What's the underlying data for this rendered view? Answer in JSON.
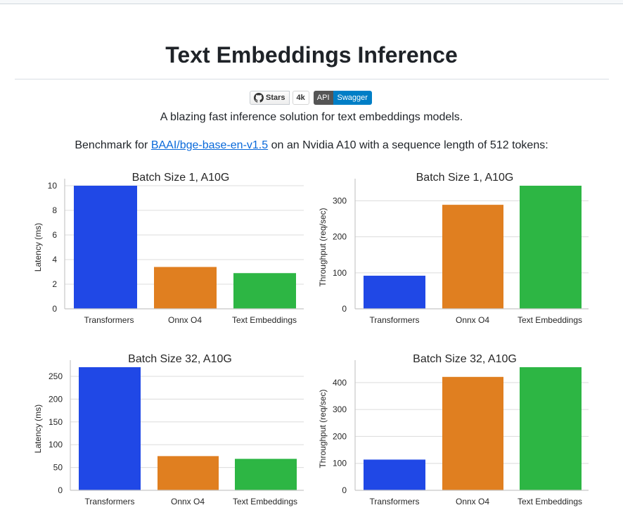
{
  "page": {
    "title": "Text Embeddings Inference",
    "badges": {
      "stars_label": "Stars",
      "stars_count": "4k",
      "api_label": "API",
      "swagger_label": "Swagger"
    },
    "tagline": "A blazing fast inference solution for text embeddings models.",
    "benchmark": {
      "prefix": "Benchmark for ",
      "link_text": "BAAI/bge-base-en-v1.5",
      "suffix": " on an Nvidia A10 with a sequence length of 512 tokens:"
    }
  },
  "colors": {
    "transformers": "#2048e6",
    "onnx": "#e07f20",
    "tei": "#2db644"
  },
  "chart_data": [
    {
      "type": "bar",
      "title": "Batch Size 1, A10G",
      "ylabel": "Latency (ms)",
      "categories": [
        "Transformers",
        "Onnx O4",
        "Text Embeddings"
      ],
      "values": [
        10,
        3.4,
        2.9
      ],
      "ylim": [
        0,
        10
      ],
      "yticks": [
        0,
        2,
        4,
        6,
        8,
        10
      ],
      "grid": true
    },
    {
      "type": "bar",
      "title": "Batch Size 1, A10G",
      "ylabel": "Throughput (req/sec)",
      "categories": [
        "Transformers",
        "Onnx O4",
        "Text Embeddings"
      ],
      "values": [
        92,
        289,
        342
      ],
      "ylim": [
        0,
        342
      ],
      "yticks": [
        0,
        100,
        200,
        300
      ],
      "grid": true
    },
    {
      "type": "bar",
      "title": "Batch Size 32, A10G",
      "ylabel": "Latency (ms)",
      "categories": [
        "Transformers",
        "Onnx O4",
        "Text Embeddings"
      ],
      "values": [
        270,
        75,
        69
      ],
      "ylim": [
        0,
        270
      ],
      "yticks": [
        0,
        50,
        100,
        150,
        200,
        250
      ],
      "grid": true
    },
    {
      "type": "bar",
      "title": "Batch Size 32, A10G",
      "ylabel": "Throughput (req/sec)",
      "categories": [
        "Transformers",
        "Onnx O4",
        "Text Embeddings"
      ],
      "values": [
        114,
        421,
        457
      ],
      "ylim": [
        0,
        457
      ],
      "yticks": [
        0,
        100,
        200,
        300,
        400
      ],
      "grid": true
    }
  ]
}
